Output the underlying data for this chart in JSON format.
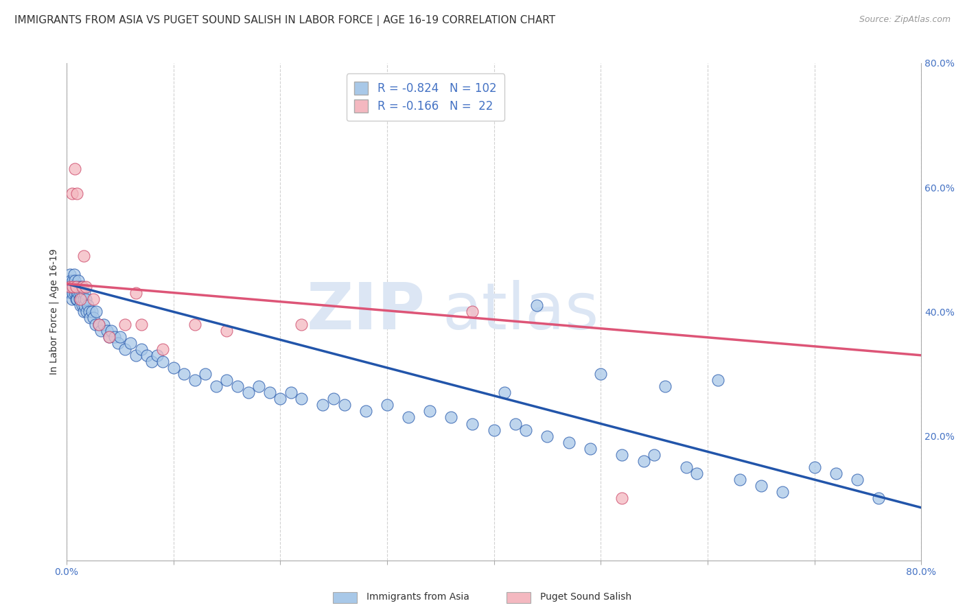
{
  "title": "IMMIGRANTS FROM ASIA VS PUGET SOUND SALISH IN LABOR FORCE | AGE 16-19 CORRELATION CHART",
  "source_text": "Source: ZipAtlas.com",
  "ylabel": "In Labor Force | Age 16-19",
  "xlim": [
    0.0,
    0.8
  ],
  "ylim": [
    0.0,
    0.8
  ],
  "xtick_labels": [
    "0.0%",
    "",
    "",
    "",
    "",
    "",
    "",
    "",
    "80.0%"
  ],
  "xtick_values": [
    0.0,
    0.1,
    0.2,
    0.3,
    0.4,
    0.5,
    0.6,
    0.7,
    0.8
  ],
  "ytick_right_labels": [
    "20.0%",
    "40.0%",
    "60.0%",
    "80.0%"
  ],
  "ytick_right_values": [
    0.2,
    0.4,
    0.6,
    0.8
  ],
  "title_fontsize": 11,
  "axis_label_fontsize": 10,
  "tick_fontsize": 10,
  "legend_R1": "-0.824",
  "legend_N1": "102",
  "legend_R2": "-0.166",
  "legend_N2": "22",
  "blue_color": "#a8c8e8",
  "pink_color": "#f4b8c0",
  "blue_line_color": "#2255aa",
  "pink_line_color": "#dd5577",
  "watermark_color": "#dce6f4",
  "background_color": "#ffffff",
  "grid_color": "#cccccc",
  "blue_line_x0": 0.0,
  "blue_line_x1": 0.8,
  "blue_line_y0": 0.445,
  "blue_line_y1": 0.085,
  "pink_line_x0": 0.0,
  "pink_line_x1": 0.8,
  "pink_line_y0": 0.445,
  "pink_line_y1": 0.33,
  "blue_x": [
    0.002,
    0.003,
    0.004,
    0.004,
    0.005,
    0.005,
    0.006,
    0.006,
    0.007,
    0.007,
    0.008,
    0.008,
    0.009,
    0.009,
    0.01,
    0.01,
    0.01,
    0.011,
    0.011,
    0.012,
    0.012,
    0.013,
    0.013,
    0.014,
    0.014,
    0.015,
    0.015,
    0.016,
    0.016,
    0.017,
    0.017,
    0.018,
    0.019,
    0.02,
    0.021,
    0.022,
    0.024,
    0.025,
    0.027,
    0.028,
    0.03,
    0.032,
    0.035,
    0.038,
    0.04,
    0.042,
    0.045,
    0.048,
    0.05,
    0.055,
    0.06,
    0.065,
    0.07,
    0.075,
    0.08,
    0.085,
    0.09,
    0.1,
    0.11,
    0.12,
    0.13,
    0.14,
    0.15,
    0.16,
    0.17,
    0.18,
    0.19,
    0.2,
    0.21,
    0.22,
    0.24,
    0.25,
    0.26,
    0.28,
    0.3,
    0.32,
    0.34,
    0.36,
    0.38,
    0.4,
    0.41,
    0.42,
    0.43,
    0.45,
    0.47,
    0.49,
    0.5,
    0.52,
    0.54,
    0.56,
    0.58,
    0.59,
    0.61,
    0.63,
    0.65,
    0.67,
    0.7,
    0.72,
    0.74,
    0.76,
    0.55,
    0.44
  ],
  "blue_y": [
    0.44,
    0.46,
    0.43,
    0.45,
    0.44,
    0.42,
    0.45,
    0.43,
    0.46,
    0.44,
    0.43,
    0.45,
    0.44,
    0.42,
    0.44,
    0.43,
    0.42,
    0.45,
    0.43,
    0.44,
    0.42,
    0.43,
    0.41,
    0.44,
    0.42,
    0.43,
    0.41,
    0.42,
    0.4,
    0.43,
    0.41,
    0.42,
    0.4,
    0.41,
    0.4,
    0.39,
    0.4,
    0.39,
    0.38,
    0.4,
    0.38,
    0.37,
    0.38,
    0.37,
    0.36,
    0.37,
    0.36,
    0.35,
    0.36,
    0.34,
    0.35,
    0.33,
    0.34,
    0.33,
    0.32,
    0.33,
    0.32,
    0.31,
    0.3,
    0.29,
    0.3,
    0.28,
    0.29,
    0.28,
    0.27,
    0.28,
    0.27,
    0.26,
    0.27,
    0.26,
    0.25,
    0.26,
    0.25,
    0.24,
    0.25,
    0.23,
    0.24,
    0.23,
    0.22,
    0.21,
    0.27,
    0.22,
    0.21,
    0.2,
    0.19,
    0.18,
    0.3,
    0.17,
    0.16,
    0.28,
    0.15,
    0.14,
    0.29,
    0.13,
    0.12,
    0.11,
    0.15,
    0.14,
    0.13,
    0.1,
    0.17,
    0.41
  ],
  "pink_x": [
    0.003,
    0.005,
    0.006,
    0.008,
    0.009,
    0.01,
    0.013,
    0.015,
    0.016,
    0.018,
    0.025,
    0.03,
    0.04,
    0.055,
    0.065,
    0.07,
    0.09,
    0.12,
    0.15,
    0.22,
    0.38,
    0.52
  ],
  "pink_y": [
    0.44,
    0.59,
    0.44,
    0.63,
    0.44,
    0.59,
    0.42,
    0.44,
    0.49,
    0.44,
    0.42,
    0.38,
    0.36,
    0.38,
    0.43,
    0.38,
    0.34,
    0.38,
    0.37,
    0.38,
    0.4,
    0.1
  ]
}
